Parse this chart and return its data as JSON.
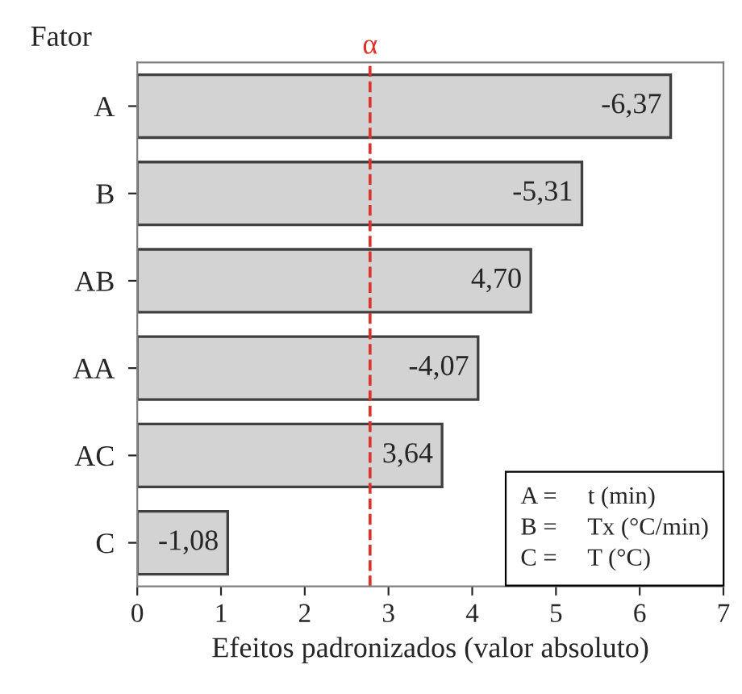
{
  "chart_data": {
    "type": "bar",
    "orientation": "horizontal",
    "ylabel": "Fator",
    "xlabel": "Efeitos padronizados (valor absoluto)",
    "categories": [
      "A",
      "B",
      "AB",
      "AA",
      "AC",
      "C"
    ],
    "values": [
      6.37,
      5.31,
      4.7,
      4.07,
      3.64,
      1.08
    ],
    "color": "#d3d3d3",
    "xlim": [
      0,
      7
    ],
    "xticks": [
      0,
      1,
      2,
      3,
      4,
      5,
      6,
      7
    ],
    "ref_lines": [
      {
        "axis": "x",
        "value": 2.78,
        "label": "α",
        "color": "#e0302a",
        "line_style": "dashed"
      }
    ],
    "annotations": [
      {
        "text": "-6,37",
        "x": 6.37,
        "y": "A"
      },
      {
        "text": "-5,31",
        "x": 5.31,
        "y": "B"
      },
      {
        "text": "4,70",
        "x": 4.7,
        "y": "AB"
      },
      {
        "text": "-4,07",
        "x": 4.07,
        "y": "AA"
      },
      {
        "text": "3,64",
        "x": 3.64,
        "y": "AC"
      },
      {
        "text": "-1,08",
        "x": 1.08,
        "y": "C"
      },
      "A =     t (min)\nB =     Tx (°C/min)\nC =     T (°C)"
    ],
    "grid": false,
    "legend": false
  }
}
